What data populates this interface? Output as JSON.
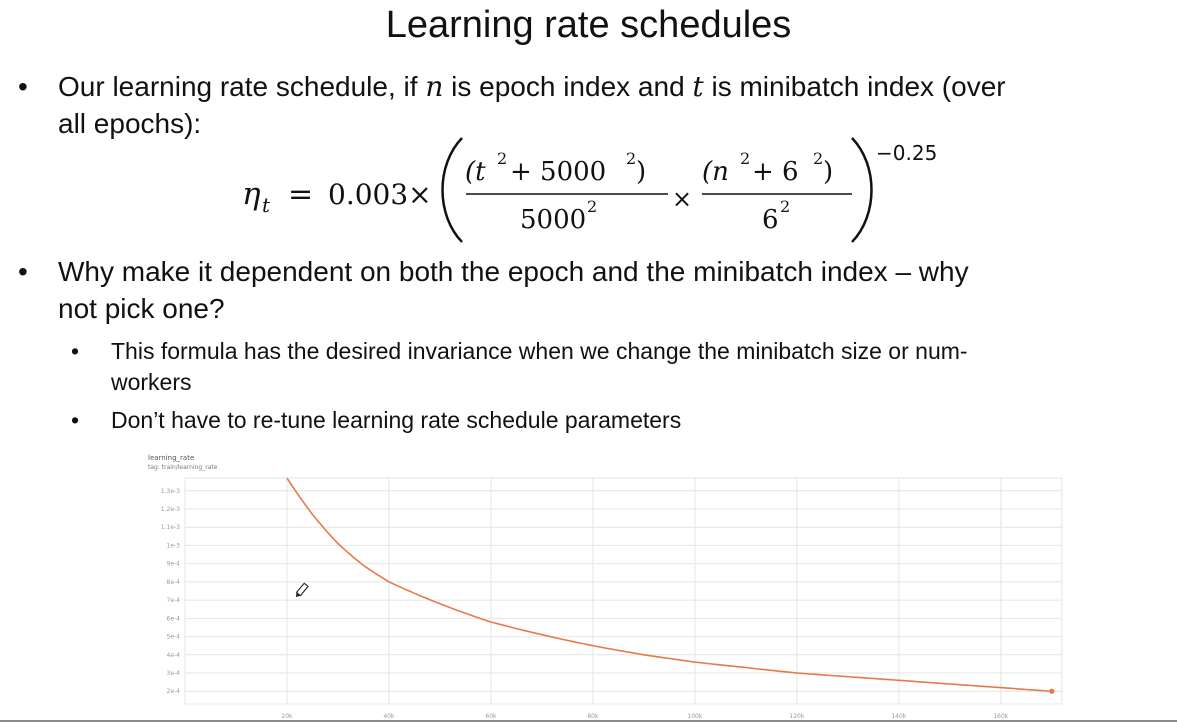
{
  "slide": {
    "title": "Learning rate schedules",
    "bullet_1": {
      "text_1": "Our learning rate schedule, if ",
      "var_n": "n",
      "text_2": " is epoch index and ",
      "var_t": "t",
      "text_3": " is minibatch index (over",
      "line_2": "all epochs):"
    },
    "formula": {
      "lhs_eta": "η",
      "lhs_sub": "t",
      "equals": "=",
      "coef": "0.003×",
      "num_left_a": "(t",
      "num_left_sup": "2",
      "num_left_b": " + 5000",
      "num_left_sup2": "2",
      "num_left_c": " )",
      "den_left": "5000",
      "den_left_sup": "2",
      "times": "×",
      "num_right_a": "(n",
      "num_right_sup": "2",
      "num_right_b": " + 6",
      "num_right_sup2": "2",
      "num_right_c": " )",
      "den_right": "6",
      "den_right_sup": "2",
      "exponent": "−0.25"
    },
    "bullet_2": {
      "line_1": "Why make it dependent on both the epoch and the minibatch index – why",
      "line_2": "not pick one?"
    },
    "sub_bullet_1": {
      "line_1": "This formula has the desired invariance when we change the minibatch size or num-",
      "line_2": "workers"
    },
    "sub_bullet_2": "Don’t have to re-tune learning rate schedule parameters",
    "bullet_symbol": "•"
  },
  "chart_data": {
    "type": "line",
    "title": "learning_rate",
    "subtitle": "tag: train/learning_rate",
    "x_ticks": [
      "20k",
      "40k",
      "60k",
      "80k",
      "100k",
      "120k",
      "140k",
      "160k"
    ],
    "x_tick_values": [
      20000,
      40000,
      60000,
      80000,
      100000,
      120000,
      140000,
      160000
    ],
    "y_ticks": [
      "1.3e-3",
      "1.2e-3",
      "1.1e-3",
      "1e-3",
      "9e-4",
      "8e-4",
      "7e-4",
      "6e-4",
      "5e-4",
      "4e-4",
      "3e-4",
      "2e-4"
    ],
    "y_tick_values": [
      0.0013,
      0.0012,
      0.0011,
      0.001,
      0.0009,
      0.0008,
      0.0007,
      0.0006,
      0.0005,
      0.0004,
      0.0003,
      0.0002
    ],
    "xlim": [
      0,
      172000
    ],
    "ylim": [
      0.00013,
      0.00137
    ],
    "grid": true,
    "series": [
      {
        "color": "#e8794a",
        "x": [
          20000,
          25000,
          30000,
          35000,
          40000,
          50000,
          60000,
          70000,
          80000,
          90000,
          100000,
          110000,
          120000,
          130000,
          140000,
          150000,
          160000,
          170000
        ],
        "y": [
          0.00137,
          0.00117,
          0.00101,
          0.00089,
          0.0008,
          0.00068,
          0.00058,
          0.00051,
          0.00045,
          0.0004,
          0.00036,
          0.00033,
          0.0003,
          0.00028,
          0.00026,
          0.00024,
          0.00022,
          0.0002
        ]
      }
    ],
    "grid_color": "#e4e4e4",
    "tick_color": "#9a9a9a",
    "line_color": "#e8794a"
  }
}
